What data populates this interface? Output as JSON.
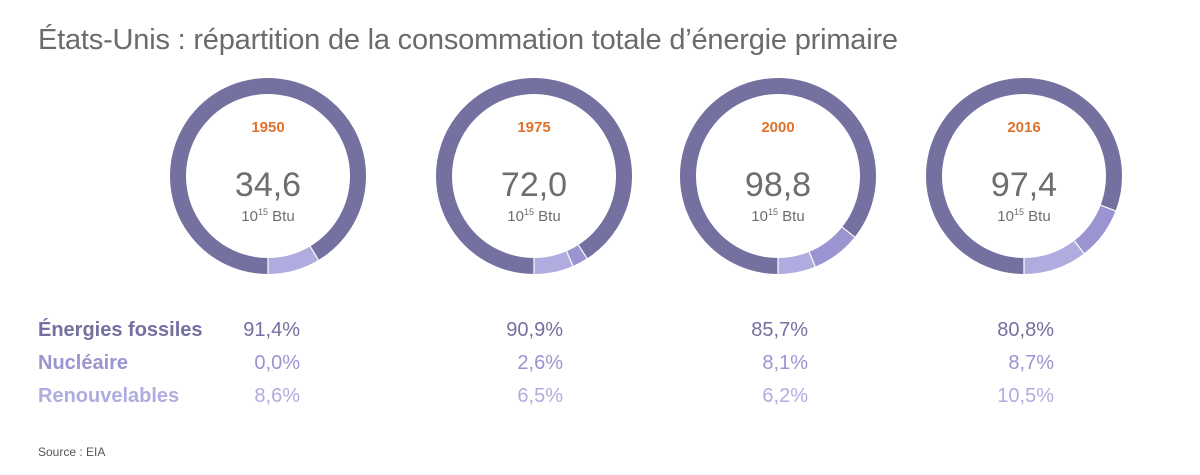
{
  "title": "États-Unis : répartition de la consommation totale d’énergie primaire",
  "unit": {
    "base": "10",
    "exp": "15",
    "suffix": " Btu"
  },
  "colors": {
    "fossil": "#7470a0",
    "nuclear": "#9a95d0",
    "renewable": "#b0acdf",
    "year": "#e0712c",
    "text": "#6e6e6e"
  },
  "chart_data": {
    "type": "pie",
    "variant": "donut",
    "title": "États-Unis : répartition de la consommation totale d’énergie primaire",
    "series_names": [
      "Énergies fossiles",
      "Nucléaire",
      "Renouvelables"
    ],
    "charts": [
      {
        "year": "1950",
        "total": "34,6",
        "values": [
          91.4,
          0.0,
          8.6
        ],
        "labels": [
          "91,4%",
          "0,0%",
          "8,6%"
        ]
      },
      {
        "year": "1975",
        "total": "72,0",
        "values": [
          90.9,
          2.6,
          6.5
        ],
        "labels": [
          "90,9%",
          "2,6%",
          "6,5%"
        ]
      },
      {
        "year": "2000",
        "total": "98,8",
        "values": [
          85.7,
          8.1,
          6.2
        ],
        "labels": [
          "85,7%",
          "8,1%",
          "6,2%"
        ]
      },
      {
        "year": "2016",
        "total": "97,4",
        "values": [
          80.8,
          8.7,
          10.5
        ],
        "labels": [
          "80,8%",
          "8,7%",
          "10,5%"
        ]
      }
    ]
  },
  "source": "Source : EIA"
}
